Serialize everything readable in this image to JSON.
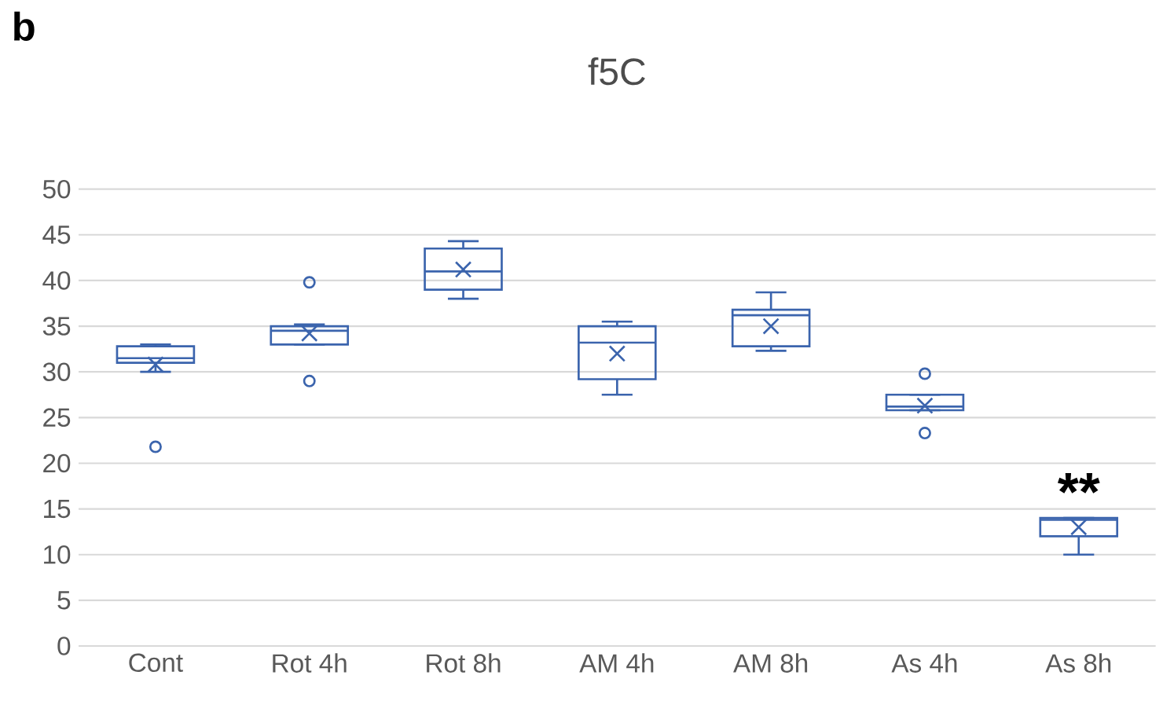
{
  "chart_data": {
    "type": "box",
    "title": "f5C",
    "color": "#3b64ad",
    "categories": [
      "Cont",
      "Rot 4h",
      "Rot 8h",
      "AM 4h",
      "AM 8h",
      "As 4h",
      "As 8h"
    ],
    "boxes": [
      {
        "low": 30,
        "q1": 31,
        "median": 31.5,
        "q3": 32.8,
        "high": 33,
        "mean": 30.8,
        "outliers": [
          21.8
        ]
      },
      {
        "low": 33,
        "q1": 33,
        "median": 34.5,
        "q3": 35,
        "high": 35.2,
        "mean": 34.2,
        "outliers": [
          39.8,
          29
        ]
      },
      {
        "low": 38,
        "q1": 39,
        "median": 41,
        "q3": 43.5,
        "high": 44.3,
        "mean": 41.2
      },
      {
        "low": 27.5,
        "q1": 29.2,
        "median": 33.2,
        "q3": 35,
        "high": 35.5,
        "mean": 32
      },
      {
        "low": 32.3,
        "q1": 32.8,
        "median": 36.2,
        "q3": 36.8,
        "high": 38.7,
        "mean": 35
      },
      {
        "low": 25.8,
        "q1": 25.8,
        "median": 26.2,
        "q3": 27.5,
        "high": 27.5,
        "mean": 26.3,
        "outliers": [
          29.8,
          23.3
        ]
      },
      {
        "low": 10,
        "q1": 12,
        "median": 13.8,
        "q3": 14,
        "high": 14,
        "mean": 13
      }
    ],
    "ylim": [
      0,
      50
    ],
    "yticks": [
      0,
      5,
      10,
      15,
      20,
      25,
      30,
      35,
      40,
      45,
      50
    ],
    "grid": "y",
    "annotations": [
      "b",
      "**"
    ]
  }
}
